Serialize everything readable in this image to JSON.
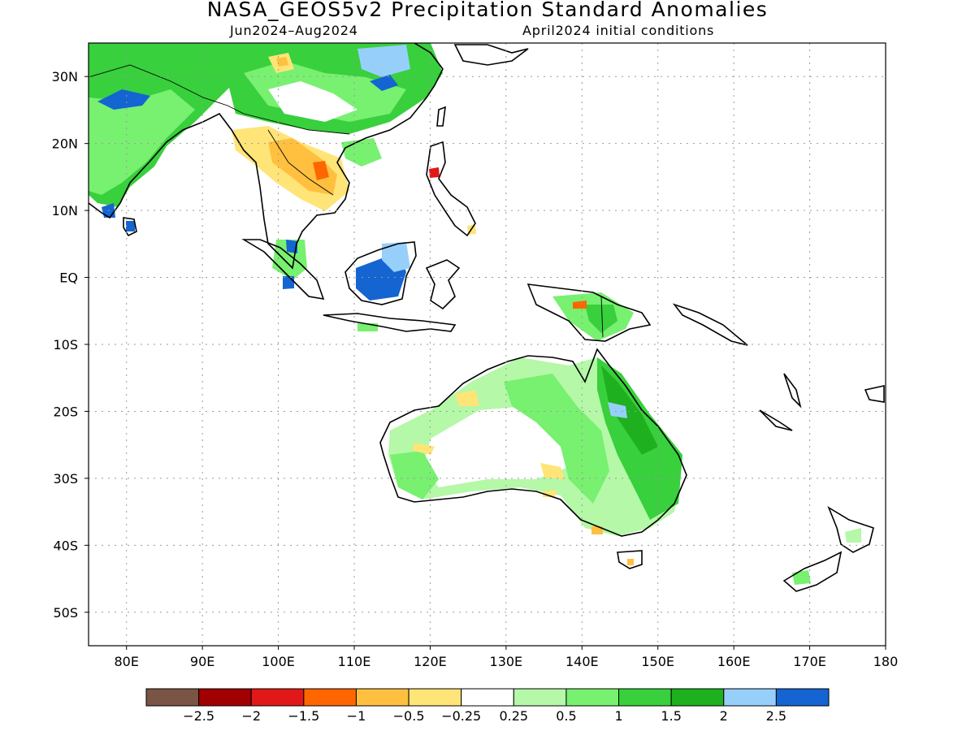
{
  "title": "NASA_GEOS5v2 Precipitation Standard Anomalies",
  "subtitle_period": "Jun2024–Aug2024",
  "subtitle_init": "April2024 initial conditions",
  "map": {
    "lon_range": [
      75,
      180
    ],
    "lat_range": [
      -55,
      35
    ],
    "lat_ticks": [
      {
        "value": 30,
        "label": "30N"
      },
      {
        "value": 20,
        "label": "20N"
      },
      {
        "value": 10,
        "label": "10N"
      },
      {
        "value": 0,
        "label": "EQ"
      },
      {
        "value": -10,
        "label": "10S"
      },
      {
        "value": -20,
        "label": "20S"
      },
      {
        "value": -30,
        "label": "30S"
      },
      {
        "value": -40,
        "label": "40S"
      },
      {
        "value": -50,
        "label": "50S"
      }
    ],
    "lon_ticks": [
      {
        "value": 80,
        "label": "80E"
      },
      {
        "value": 90,
        "label": "90E"
      },
      {
        "value": 100,
        "label": "100E"
      },
      {
        "value": 110,
        "label": "110E"
      },
      {
        "value": 120,
        "label": "120E"
      },
      {
        "value": 130,
        "label": "130E"
      },
      {
        "value": 140,
        "label": "140E"
      },
      {
        "value": 150,
        "label": "150E"
      },
      {
        "value": 160,
        "label": "160E"
      },
      {
        "value": 170,
        "label": "170E"
      },
      {
        "value": 180,
        "label": "180"
      }
    ],
    "grid": true
  },
  "legend": {
    "colors": [
      "#7a5444",
      "#a00000",
      "#e01818",
      "#ff6600",
      "#ffc040",
      "#ffe478",
      "#ffffff",
      "#b4f8a8",
      "#78f070",
      "#38d03c",
      "#1eb01e",
      "#96d0fa",
      "#1464d2"
    ],
    "labels": [
      "−2.5",
      "−2",
      "−1.5",
      "−1",
      "−0.5",
      "−0.25",
      "0.25",
      "0.5",
      "1",
      "1.5",
      "2",
      "2.5"
    ]
  }
}
